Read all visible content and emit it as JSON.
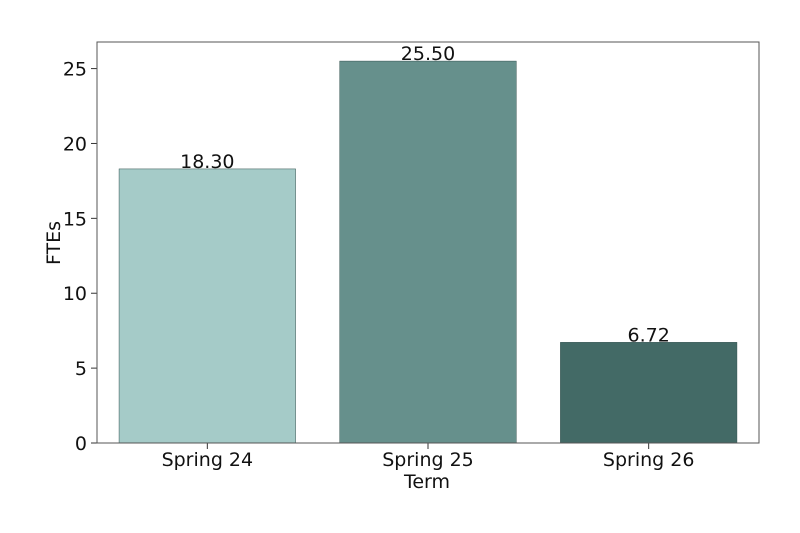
{
  "chart_data": {
    "type": "bar",
    "x_label": "Term",
    "y_label": "FTEs",
    "categories": [
      "Spring 24",
      "Spring 25",
      "Spring 26"
    ],
    "values": [
      18.3,
      25.5,
      6.72
    ],
    "value_labels": [
      "18.30",
      "25.50",
      "6.72"
    ],
    "colors": [
      "#a5cbc8",
      "#66908c",
      "#436a66"
    ],
    "ylim": [
      0,
      26.775
    ],
    "yticks": [
      0,
      5,
      10,
      15,
      20,
      25
    ],
    "grid": false
  }
}
